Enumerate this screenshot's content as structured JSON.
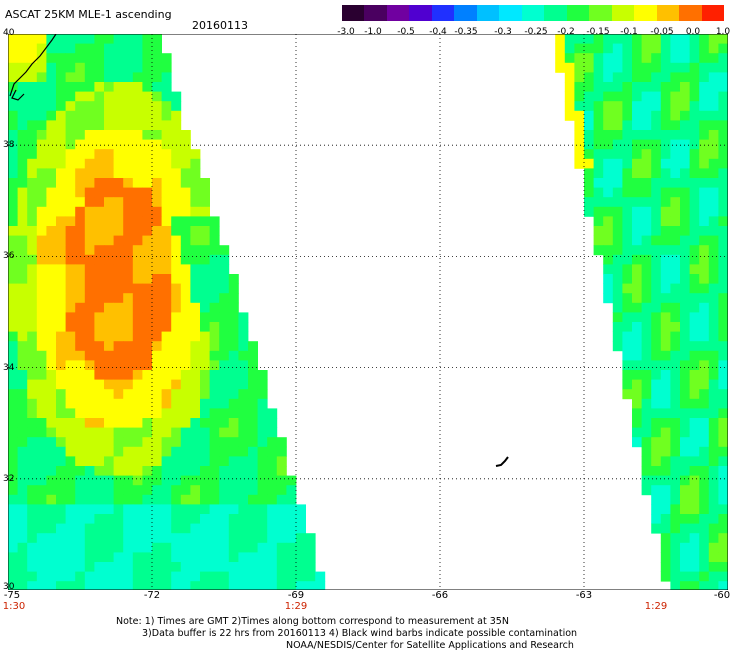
{
  "header": {
    "title": "ASCAT 25KM MLE-1 ascending",
    "date": "20160113"
  },
  "colorbar": {
    "colors": [
      "#2a0030",
      "#4a0060",
      "#7000a0",
      "#5000d0",
      "#2030ff",
      "#0080ff",
      "#00c0ff",
      "#00e8ff",
      "#00ffd0",
      "#00ff90",
      "#20ff40",
      "#70ff20",
      "#c8ff00",
      "#ffff00",
      "#ffc000",
      "#ff7000",
      "#ff2000"
    ],
    "labels": [
      "-3.0",
      "-1.0",
      "-0.5",
      "-0.4",
      "-0.35",
      "-0.3",
      "-0.25",
      "-0.2",
      "-0.15",
      "-0.1",
      "-0.05",
      "0.0",
      "1.0"
    ]
  },
  "map": {
    "lon_range": [
      -75,
      -60
    ],
    "lat_range": [
      30,
      40
    ],
    "lat_labels": [
      "40",
      "38",
      "36",
      "34",
      "32",
      "30"
    ],
    "lon_labels": [
      "-75",
      "-72",
      "-69",
      "-66",
      "-63",
      "-60"
    ],
    "time_labels": [
      {
        "lon": -75,
        "text": "1:30"
      },
      {
        "lon": -69,
        "text": "1:29"
      },
      {
        "lon": -61.5,
        "text": "1:29"
      }
    ],
    "grid_style": "dotted"
  },
  "notes": [
    "Note: 1) Times are GMT 2)Times along bottom correspond to measurement at 35N",
    "3)Data buffer is 22 hrs from 20160113 4) Black wind barbs indicate possible contamination",
    "NOAA/NESDIS/Center for Satellite Applications and Research"
  ]
}
